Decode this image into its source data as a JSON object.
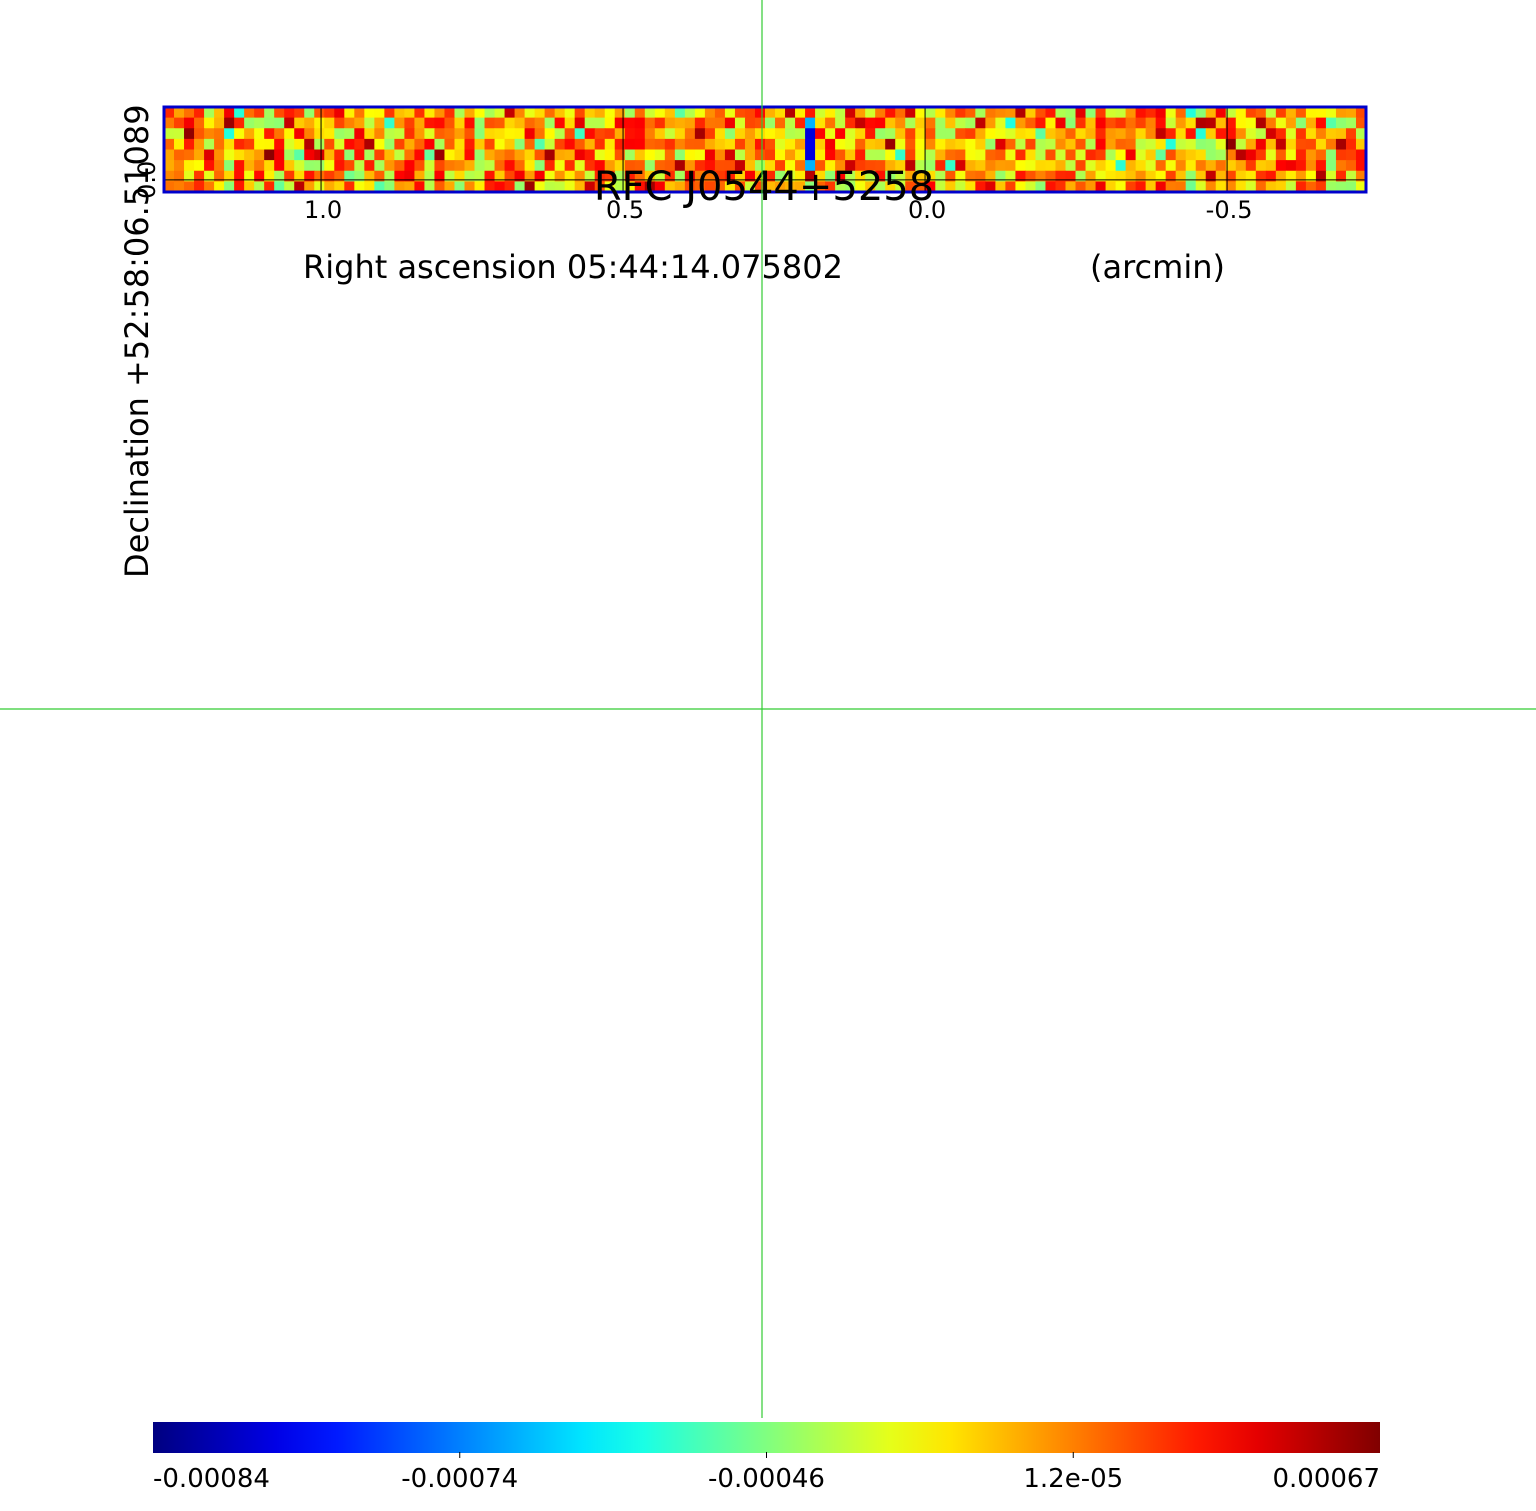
{
  "chart_data": {
    "type": "heatmap",
    "title": "RFC J0544+5258",
    "xlabel": "Right ascension  05:44:14.075802",
    "xunit": "(arcmin)",
    "ylabel": "Declination  +52:58:06.51089",
    "x_ticks": [
      "1.0",
      "0.5",
      "0.0",
      "-0.5"
    ],
    "x_tick_values": [
      1.0,
      0.5,
      0.0,
      -0.5
    ],
    "xlim": [
      1.26,
      -0.73
    ],
    "y_ticks": [
      "0.0"
    ],
    "y_tick_values": [
      0.0
    ],
    "ylim": [
      -0.02,
      0.12
    ],
    "grid": true,
    "grid_cells": {
      "cols": 120,
      "rows": 8
    },
    "colormap": "jet",
    "colorbar": {
      "ticks": [
        "-0.00084",
        "-0.00074",
        "-0.00046",
        "1.2e-05",
        "0.00067"
      ],
      "tick_fractions": [
        0.0,
        0.25,
        0.5,
        0.75,
        1.0
      ]
    },
    "crosshair": {
      "x": 0.27,
      "color": "#33cc33"
    },
    "colors": {
      "frame": "#0000cc",
      "title": "#0000cc",
      "crosshair": "#33cc33"
    }
  }
}
